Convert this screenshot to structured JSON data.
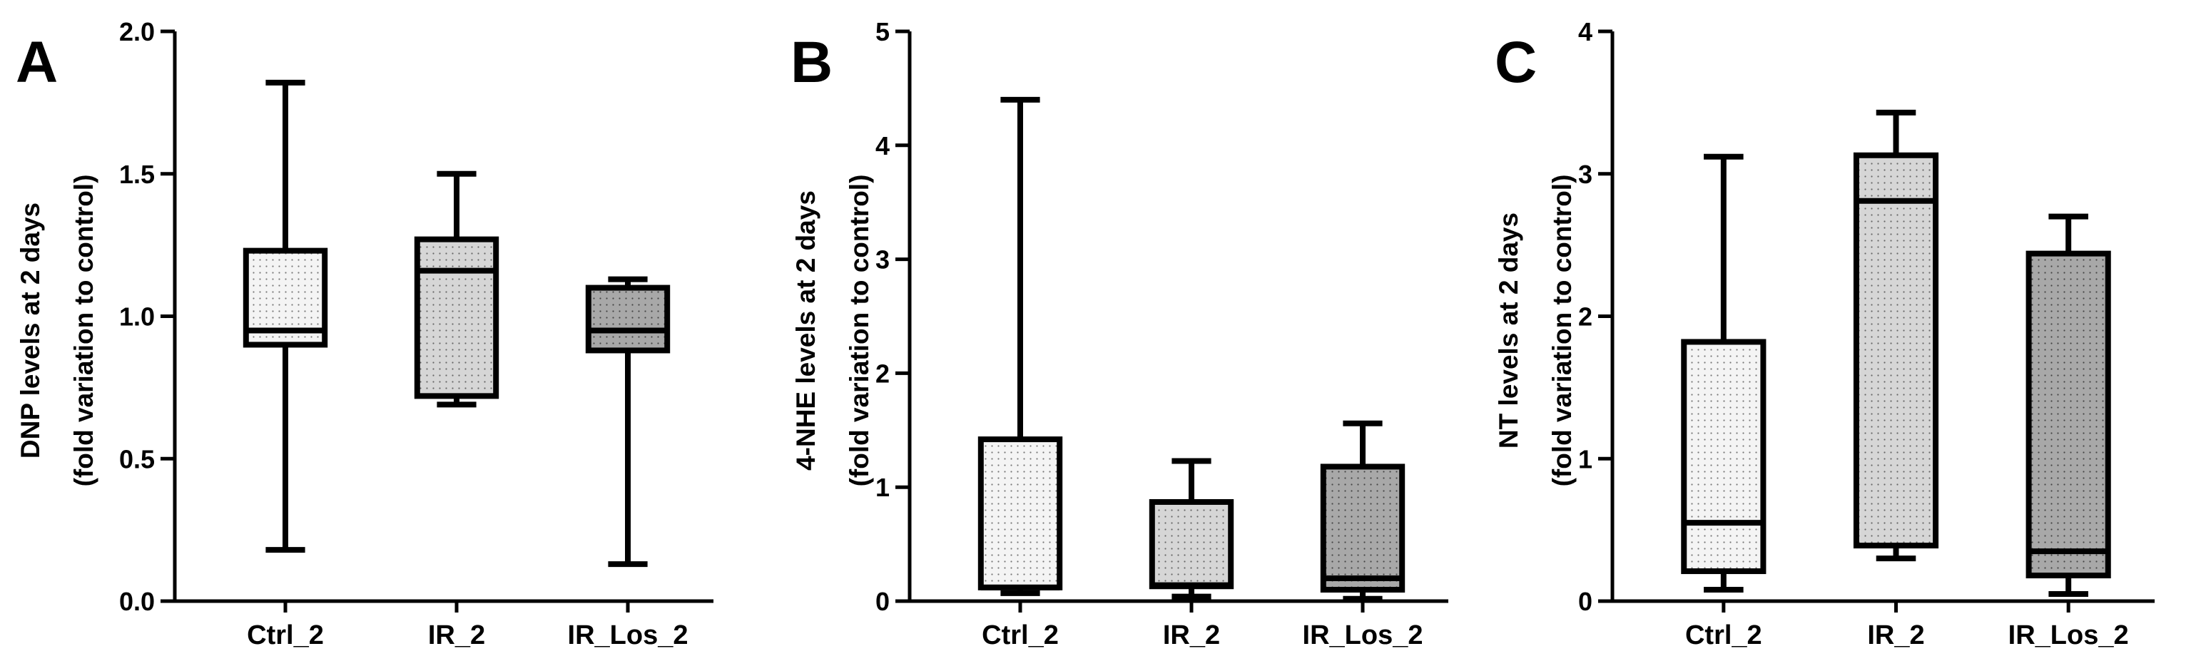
{
  "chart_data": [
    {
      "type": "box",
      "panel": "A",
      "ylabel": [
        "DNP levels at 2 days",
        "(fold variation to control)"
      ],
      "ylim": [
        0,
        2.0
      ],
      "yticks": [
        "0.0",
        "0.5",
        "1.0",
        "1.5",
        "2.0"
      ],
      "categories": [
        "Ctrl_2",
        "IR_2",
        "IR_Los_2"
      ],
      "boxes": [
        {
          "min": 0.18,
          "q1": 0.9,
          "median": 0.95,
          "q3": 1.23,
          "max": 1.82
        },
        {
          "min": 0.69,
          "q1": 0.72,
          "median": 1.16,
          "q3": 1.27,
          "max": 1.5
        },
        {
          "min": 0.13,
          "q1": 0.88,
          "median": 0.95,
          "q3": 1.1,
          "max": 1.13
        }
      ]
    },
    {
      "type": "box",
      "panel": "B",
      "ylabel": [
        "4-NHE levels at 2 days",
        "(fold variation to control)"
      ],
      "ylim": [
        0,
        5
      ],
      "yticks": [
        "0",
        "1",
        "2",
        "3",
        "4",
        "5"
      ],
      "categories": [
        "Ctrl_2",
        "IR_2",
        "IR_Los_2"
      ],
      "boxes": [
        {
          "min": 0.07,
          "q1": 0.12,
          "median": 0.12,
          "q3": 1.42,
          "max": 4.4
        },
        {
          "min": 0.04,
          "q1": 0.13,
          "median": 0.14,
          "q3": 0.87,
          "max": 1.23
        },
        {
          "min": 0.02,
          "q1": 0.1,
          "median": 0.2,
          "q3": 1.18,
          "max": 1.56
        }
      ]
    },
    {
      "type": "box",
      "panel": "C",
      "ylabel": [
        "NT levels at 2 days",
        "(fold variation to control)"
      ],
      "ylim": [
        0,
        4
      ],
      "yticks": [
        "0",
        "1",
        "2",
        "3",
        "4"
      ],
      "categories": [
        "Ctrl_2",
        "IR_2",
        "IR_Los_2"
      ],
      "boxes": [
        {
          "min": 0.08,
          "q1": 0.21,
          "median": 0.55,
          "q3": 1.82,
          "max": 3.12
        },
        {
          "min": 0.3,
          "q1": 0.39,
          "median": 2.81,
          "q3": 3.13,
          "max": 3.43
        },
        {
          "min": 0.05,
          "q1": 0.18,
          "median": 0.35,
          "q3": 2.44,
          "max": 2.7
        }
      ]
    }
  ],
  "box_fill_colors": [
    "#f4f4f4",
    "#d6d6d6",
    "#a8a8a8"
  ]
}
